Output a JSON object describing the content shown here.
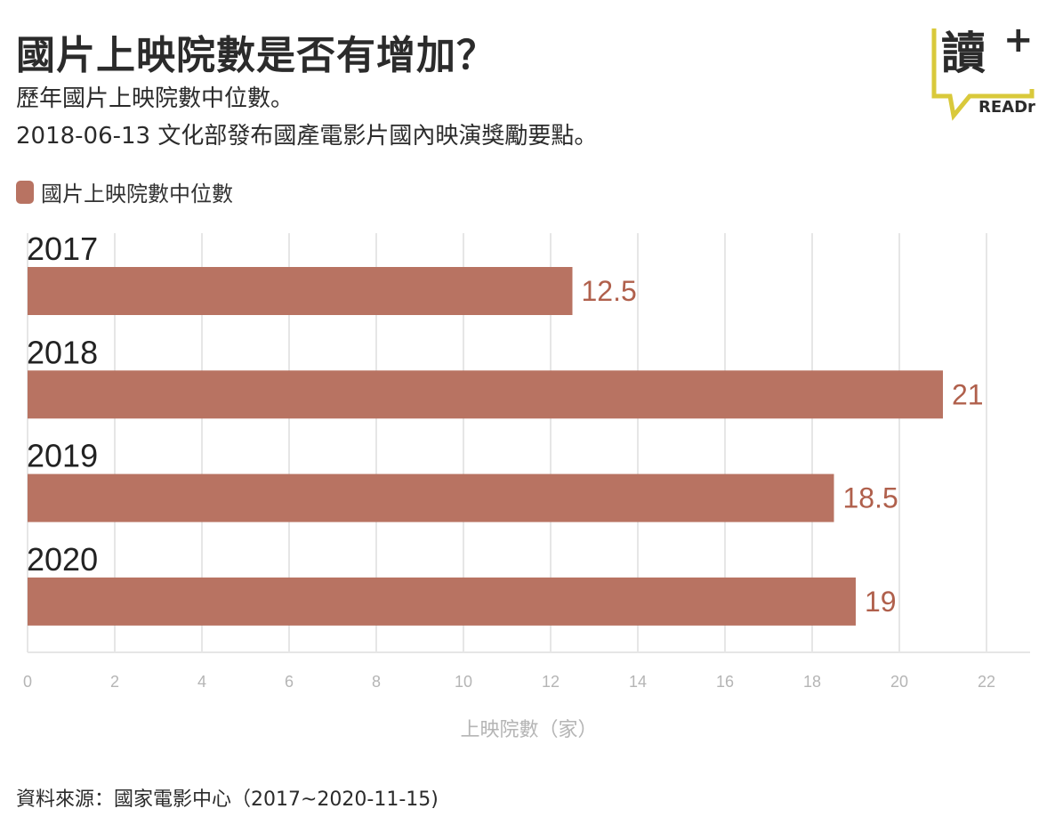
{
  "header": {
    "title": "國片上映院數是否有增加？",
    "subtitle_line1": "歷年國片上映院數中位數。",
    "subtitle_line2": "2018-06-13 文化部發布國產電影片國內映演獎勵要點。"
  },
  "logo": {
    "glyph": "讀",
    "plus": "+",
    "brand": "READr",
    "accent_color": "#d9c93b"
  },
  "legend": {
    "label": "國片上映院數中位數"
  },
  "source": "資料來源：國家電影中心（2017~2020-11-15)",
  "colors": {
    "bar": "#b87362",
    "value_label": "#b0604c",
    "grid": "#e6e6e6",
    "tick": "#b5b5b5"
  },
  "chart_data": {
    "type": "bar",
    "orientation": "horizontal",
    "categories": [
      "2017",
      "2018",
      "2019",
      "2020"
    ],
    "series": [
      {
        "name": "國片上映院數中位數",
        "values": [
          12.5,
          21,
          18.5,
          19
        ]
      }
    ],
    "value_labels": [
      "12.5",
      "21",
      "18.5",
      "19"
    ],
    "xlabel": "上映院數（家）",
    "xlim": [
      0,
      23
    ],
    "xticks": [
      0,
      2,
      4,
      6,
      8,
      10,
      12,
      14,
      16,
      18,
      20,
      22
    ],
    "grid": true,
    "legend_position": "top-left"
  }
}
